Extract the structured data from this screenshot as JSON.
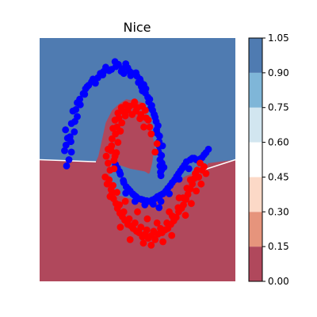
{
  "chart_data": {
    "type": "scatter",
    "title": "Nice",
    "xlabel": "",
    "ylabel": "",
    "xlim": [
      -1.5,
      2.5
    ],
    "ylim": [
      -1.5,
      2.0
    ],
    "grid": false,
    "legend": "none",
    "background": "decision-boundary contour",
    "contour_levels": [
      0.0,
      0.15,
      0.3,
      0.45,
      0.6,
      0.75,
      0.9,
      1.05
    ],
    "contour_colors": [
      "#b0485c",
      "#e6947c",
      "#fcd9c7",
      "#ffffff",
      "#d2e6f0",
      "#7fb6d8",
      "#4f7bb1"
    ],
    "colorbar": {
      "ticks": [
        "0.00",
        "0.15",
        "0.30",
        "0.45",
        "0.60",
        "0.75",
        "0.90",
        "1.05"
      ],
      "placement": "right"
    },
    "boundary": {
      "class_0_region": "upper part plus a tongue reaching into the lower C",
      "class_1_region": "lower part plus an island inside the upper C"
    },
    "series": [
      {
        "class": 0,
        "color": "#0000ff",
        "points": [
          [
            -0.95,
            0.16
          ],
          [
            -0.85,
            0.36
          ],
          [
            -0.93,
            0.56
          ],
          [
            -0.85,
            0.77
          ],
          [
            -0.76,
            0.97
          ],
          [
            -0.73,
            1.07
          ],
          [
            -0.61,
            1.2
          ],
          [
            -0.5,
            1.32
          ],
          [
            -0.41,
            1.41
          ],
          [
            -0.31,
            1.43
          ],
          [
            -0.19,
            1.52
          ],
          [
            -0.03,
            1.55
          ],
          [
            0.06,
            1.59
          ],
          [
            0.19,
            1.56
          ],
          [
            0.34,
            1.52
          ],
          [
            0.49,
            1.45
          ],
          [
            0.56,
            1.38
          ],
          [
            0.66,
            1.21
          ],
          [
            0.75,
            1.12
          ],
          [
            0.81,
            0.96
          ],
          [
            0.86,
            0.86
          ],
          [
            0.92,
            0.74
          ],
          [
            0.95,
            0.59
          ],
          [
            0.95,
            0.44
          ],
          [
            0.99,
            0.31
          ],
          [
            0.96,
            0.16
          ],
          [
            0.98,
            0.02
          ],
          [
            -0.86,
            0.51
          ],
          [
            -0.73,
            0.87
          ],
          [
            -0.58,
            1.19
          ],
          [
            -0.21,
            1.47
          ],
          [
            0.17,
            1.52
          ],
          [
            0.55,
            1.41
          ],
          [
            0.79,
            1.03
          ],
          [
            0.94,
            0.51
          ],
          [
            0.99,
            0.1
          ],
          [
            -0.79,
            0.65
          ],
          [
            -0.36,
            1.35
          ],
          [
            0.11,
            1.62
          ],
          [
            0.63,
            1.33
          ],
          [
            0.89,
            0.68
          ],
          [
            -0.96,
            0.46
          ],
          [
            -0.67,
            1.04
          ],
          [
            -0.12,
            1.55
          ],
          [
            0.41,
            1.49
          ],
          [
            0.84,
            0.9
          ],
          [
            1.0,
            0.2
          ],
          [
            -0.56,
            1.27
          ],
          [
            0.26,
            1.63
          ],
          [
            0.71,
            1.15
          ],
          [
            0.09,
            0.13
          ],
          [
            0.15,
            0.04
          ],
          [
            0.21,
            -0.05
          ],
          [
            0.27,
            -0.14
          ],
          [
            0.35,
            -0.2
          ],
          [
            0.43,
            -0.26
          ],
          [
            0.52,
            -0.31
          ],
          [
            0.62,
            -0.33
          ],
          [
            0.74,
            -0.35
          ],
          [
            0.86,
            -0.31
          ],
          [
            0.97,
            -0.26
          ],
          [
            1.08,
            -0.2
          ],
          [
            1.17,
            -0.12
          ],
          [
            1.26,
            -0.04
          ],
          [
            1.34,
            0.05
          ],
          [
            1.42,
            0.13
          ],
          [
            1.5,
            0.22
          ],
          [
            1.58,
            0.25
          ],
          [
            1.66,
            0.27
          ],
          [
            1.74,
            0.24
          ],
          [
            1.82,
            0.28
          ],
          [
            1.9,
            0.35
          ],
          [
            0.05,
            0.18
          ],
          [
            0.31,
            -0.17
          ],
          [
            0.58,
            -0.32
          ],
          [
            0.91,
            -0.28
          ],
          [
            1.21,
            -0.08
          ],
          [
            1.46,
            0.17
          ],
          [
            1.86,
            0.32
          ],
          [
            0.22,
            -0.08
          ],
          [
            0.69,
            -0.34
          ],
          [
            1.02,
            -0.24
          ],
          [
            1.38,
            0.09
          ],
          [
            1.7,
            0.25
          ],
          [
            0.13,
            0.08
          ],
          [
            0.47,
            -0.28
          ],
          [
            1.12,
            -0.16
          ],
          [
            1.62,
            0.27
          ],
          [
            0.4,
            -0.24
          ],
          [
            0.8,
            -0.33
          ],
          [
            1.3,
            0.01
          ],
          [
            1.78,
            0.26
          ],
          [
            1.95,
            0.4
          ],
          [
            -0.9,
            0.25
          ],
          [
            -0.97,
            0.68
          ],
          [
            -0.78,
            0.8
          ],
          [
            -0.68,
            1.12
          ],
          [
            -0.44,
            1.37
          ],
          [
            -0.26,
            1.49
          ],
          [
            -0.08,
            1.53
          ],
          [
            0.3,
            1.57
          ],
          [
            0.47,
            1.5
          ],
          [
            0.58,
            1.3
          ],
          [
            0.73,
            1.08
          ],
          [
            0.88,
            0.8
          ],
          [
            0.93,
            0.36
          ],
          [
            0.96,
            0.25
          ],
          [
            -0.99,
            0.38
          ],
          [
            -0.82,
            0.95
          ],
          [
            -0.53,
            1.3
          ],
          [
            -0.15,
            1.58
          ],
          [
            0.04,
            1.66
          ],
          [
            0.22,
            1.49
          ],
          [
            0.52,
            1.36
          ],
          [
            0.67,
            1.27
          ],
          [
            0.77,
            0.99
          ],
          [
            0.9,
            0.63
          ],
          [
            0.97,
            0.07
          ],
          [
            -0.88,
            0.58
          ],
          [
            0.36,
            1.46
          ],
          [
            0.6,
            1.24
          ],
          [
            1.04,
            0.14
          ],
          [
            1.01,
            0.45
          ],
          [
            0.82,
            -0.39
          ],
          [
            0.65,
            -0.4
          ],
          [
            0.98,
            -0.35
          ],
          [
            1.15,
            -0.24
          ],
          [
            0.45,
            -0.35
          ],
          [
            1.35,
            -0.03
          ],
          [
            1.55,
            0.12
          ],
          [
            0.26,
            -0.23
          ],
          [
            0.94,
            -0.44
          ]
        ]
      },
      {
        "class": 1,
        "color": "#ff0000",
        "points": [
          [
            -0.02,
            0.55
          ],
          [
            0.0,
            0.7
          ],
          [
            0.04,
            0.82
          ],
          [
            0.1,
            0.92
          ],
          [
            0.17,
            1.0
          ],
          [
            0.26,
            1.04
          ],
          [
            0.34,
            1.02
          ],
          [
            0.42,
            1.04
          ],
          [
            0.5,
            1.0
          ],
          [
            0.57,
            0.9
          ],
          [
            0.07,
            0.35
          ],
          [
            0.02,
            0.24
          ],
          [
            -0.04,
            0.38
          ],
          [
            -0.06,
            0.1
          ],
          [
            -0.08,
            -0.04
          ],
          [
            -0.04,
            -0.18
          ],
          [
            0.01,
            -0.31
          ],
          [
            0.09,
            -0.45
          ],
          [
            0.19,
            -0.57
          ],
          [
            0.3,
            -0.68
          ],
          [
            0.41,
            -0.74
          ],
          [
            0.53,
            -0.8
          ],
          [
            0.66,
            -0.82
          ],
          [
            0.79,
            -0.84
          ],
          [
            0.92,
            -0.82
          ],
          [
            1.06,
            -0.76
          ],
          [
            1.18,
            -0.68
          ],
          [
            1.29,
            -0.58
          ],
          [
            1.4,
            -0.45
          ],
          [
            1.49,
            -0.32
          ],
          [
            1.58,
            -0.17
          ],
          [
            1.66,
            -0.02
          ],
          [
            1.72,
            0.1
          ],
          [
            1.78,
            0.2
          ],
          [
            0.05,
            0.62
          ],
          [
            0.12,
            0.85
          ],
          [
            0.3,
            0.96
          ],
          [
            0.47,
            0.95
          ],
          [
            0.68,
            0.85
          ],
          [
            0.75,
            0.72
          ],
          [
            -0.03,
            0.45
          ],
          [
            0.04,
            0.3
          ],
          [
            -0.1,
            0.2
          ],
          [
            -0.12,
            -0.1
          ],
          [
            -0.02,
            -0.24
          ],
          [
            0.06,
            -0.38
          ],
          [
            0.14,
            -0.52
          ],
          [
            0.24,
            -0.62
          ],
          [
            0.36,
            -0.7
          ],
          [
            0.48,
            -0.78
          ],
          [
            0.6,
            -0.86
          ],
          [
            0.72,
            -0.88
          ],
          [
            0.86,
            -0.9
          ],
          [
            1.0,
            -0.8
          ],
          [
            1.12,
            -0.74
          ],
          [
            1.24,
            -0.63
          ],
          [
            1.34,
            -0.5
          ],
          [
            1.44,
            -0.4
          ],
          [
            1.53,
            -0.25
          ],
          [
            1.62,
            -0.1
          ],
          [
            1.68,
            0.05
          ],
          [
            0.18,
            0.78
          ],
          [
            0.39,
            0.9
          ],
          [
            0.63,
            0.72
          ],
          [
            0.1,
            0.5
          ],
          [
            0.15,
            0.66
          ],
          [
            0.25,
            0.88
          ],
          [
            0.55,
            0.84
          ],
          [
            0.66,
            0.96
          ],
          [
            0.02,
            0.12
          ],
          [
            -0.14,
            0.3
          ],
          [
            -0.16,
            0.0
          ],
          [
            -0.06,
            -0.28
          ],
          [
            0.13,
            -0.4
          ],
          [
            0.22,
            -0.5
          ],
          [
            0.33,
            -0.6
          ],
          [
            0.45,
            -0.66
          ],
          [
            0.57,
            -0.72
          ],
          [
            0.69,
            -0.76
          ],
          [
            0.83,
            -0.78
          ],
          [
            0.97,
            -0.74
          ],
          [
            1.1,
            -0.66
          ],
          [
            1.21,
            -0.56
          ],
          [
            1.33,
            -0.44
          ],
          [
            1.43,
            -0.3
          ],
          [
            1.51,
            -0.16
          ],
          [
            1.58,
            -0.04
          ],
          [
            1.75,
            0.0
          ],
          [
            1.82,
            0.1
          ],
          [
            1.86,
            0.15
          ],
          [
            0.0,
            -0.12
          ],
          [
            0.08,
            -0.22
          ],
          [
            -0.1,
            0.4
          ],
          [
            0.08,
            0.72
          ],
          [
            0.22,
            0.94
          ],
          [
            0.44,
            1.08
          ],
          [
            0.6,
            1.02
          ],
          [
            0.72,
            0.82
          ],
          [
            0.78,
            0.62
          ],
          [
            0.9,
            0.48
          ],
          [
            0.86,
            0.36
          ],
          [
            0.7,
            -0.6
          ],
          [
            0.9,
            -0.66
          ],
          [
            1.15,
            -0.5
          ],
          [
            1.35,
            -0.3
          ],
          [
            1.48,
            -0.55
          ],
          [
            1.6,
            -0.38
          ],
          [
            1.7,
            -0.2
          ],
          [
            0.25,
            -0.35
          ],
          [
            0.5,
            -0.5
          ],
          [
            0.35,
            -0.9
          ],
          [
            0.62,
            -0.95
          ],
          [
            0.78,
            -0.98
          ],
          [
            1.02,
            -0.93
          ],
          [
            1.2,
            -0.84
          ],
          [
            0.15,
            -0.72
          ],
          [
            1.8,
            -0.1
          ],
          [
            1.9,
            0.05
          ]
        ]
      }
    ]
  }
}
